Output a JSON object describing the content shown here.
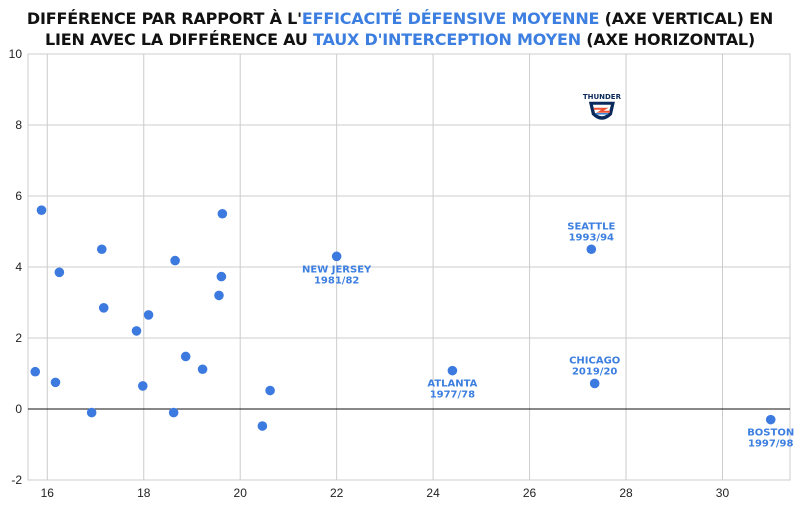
{
  "title": {
    "line1_a": "DIFFÉRENCE PAR RAPPORT À L'",
    "line1_hl": "EFFICACITÉ DÉFENSIVE MOYENNE",
    "line1_b": " (AXE VERTICAL) EN",
    "line2_a": "LIEN AVEC  LA DIFFÉRENCE AU ",
    "line2_hl": "TAUX D'INTERCEPTION MOYEN",
    "line2_b": " (AXE HORIZONTAL)"
  },
  "logo": {
    "text": "THUNDER",
    "icon": "okc-thunder-logo-icon"
  },
  "colors": {
    "points": "#3d7ae0",
    "highlight": "#3d7fe0",
    "grid": "#cccccc",
    "zero_line": "#111111"
  },
  "chart_data": {
    "type": "scatter",
    "xlim": [
      15.6,
      31.4
    ],
    "ylim": [
      -2,
      10
    ],
    "xticks": [
      16,
      18,
      20,
      22,
      24,
      26,
      28,
      30
    ],
    "yticks": [
      -2,
      0,
      2,
      4,
      6,
      8,
      10
    ],
    "grid": true,
    "points": [
      {
        "x": 15.75,
        "y": 1.05
      },
      {
        "x": 15.88,
        "y": 5.6
      },
      {
        "x": 16.17,
        "y": 0.75
      },
      {
        "x": 16.25,
        "y": 3.85
      },
      {
        "x": 16.92,
        "y": -0.1
      },
      {
        "x": 17.13,
        "y": 4.5
      },
      {
        "x": 17.17,
        "y": 2.85
      },
      {
        "x": 17.85,
        "y": 2.2
      },
      {
        "x": 17.98,
        "y": 0.65
      },
      {
        "x": 18.1,
        "y": 2.65
      },
      {
        "x": 18.62,
        "y": -0.1
      },
      {
        "x": 18.65,
        "y": 4.18
      },
      {
        "x": 18.87,
        "y": 1.48
      },
      {
        "x": 19.22,
        "y": 1.12
      },
      {
        "x": 19.56,
        "y": 3.2
      },
      {
        "x": 19.61,
        "y": 3.73
      },
      {
        "x": 19.63,
        "y": 5.5
      },
      {
        "x": 20.46,
        "y": -0.48
      },
      {
        "x": 20.62,
        "y": 0.52
      },
      {
        "x": 22.0,
        "y": 4.3,
        "label": [
          "NEW JERSEY",
          "1981/82"
        ],
        "label_pos": "below"
      },
      {
        "x": 24.4,
        "y": 1.08,
        "label": [
          "ATLANTA",
          "1977/78"
        ],
        "label_pos": "below"
      },
      {
        "x": 27.28,
        "y": 4.5,
        "label": [
          "SEATTLE",
          "1993/94"
        ],
        "label_pos": "above"
      },
      {
        "x": 27.35,
        "y": 0.72,
        "label": [
          "CHICAGO",
          "2019/20"
        ],
        "label_pos": "above"
      },
      {
        "x": 31.0,
        "y": -0.3,
        "label": [
          "BOSTON",
          "1997/98"
        ],
        "label_pos": "below"
      }
    ],
    "logo_point": {
      "x": 27.5,
      "y": 8.4
    }
  }
}
